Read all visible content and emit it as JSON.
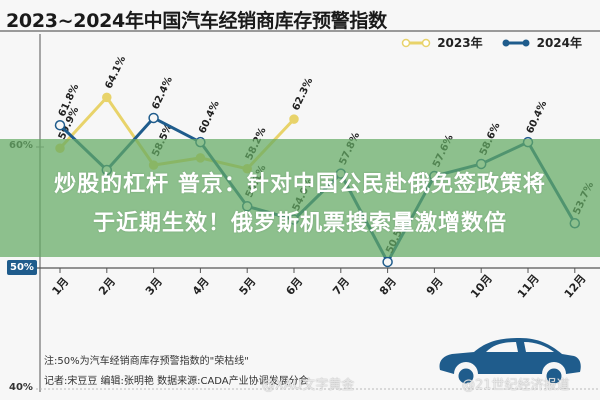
{
  "header": {
    "title": "2023~2024年中国汽车经销商库存预警指数"
  },
  "legend": [
    {
      "label": "2023年",
      "color": "#e8d36a"
    },
    {
      "label": "2024年",
      "color": "#1f5c8c"
    }
  ],
  "overlay": {
    "headline_line1": "炒股的杠杆 普京：针对中国公民赴俄免签政策将",
    "headline_line2": "于近期生效！俄罗斯机票搜索量激增数倍"
  },
  "footer": {
    "note": "注:50%为汽车经销商库存预警指数的\"荣枯线\"",
    "credits": "记者:宋豆豆   编辑:张明艳   数据来源:CADA产业协调发展分会",
    "watermark_left": "@XAU文字黄金",
    "watermark_right": "@21世纪经济报道"
  },
  "axis": {
    "y_ticks": [
      {
        "label": "60%",
        "value": 60
      },
      {
        "label": "50%",
        "value": 50
      },
      {
        "label": "40%",
        "value": 40
      }
    ]
  },
  "chart_data": {
    "type": "line",
    "title": "2023~2024年中国汽车经销商库存预警指数",
    "xlabel": "",
    "ylabel": "",
    "categories": [
      "1月",
      "2月",
      "3月",
      "4月",
      "5月",
      "6月",
      "7月",
      "8月",
      "9月",
      "10月",
      "11月",
      "12月"
    ],
    "ylim": [
      40,
      66
    ],
    "series": [
      {
        "name": "2023年",
        "color": "#e8d36a",
        "values": [
          59.9,
          64.1,
          58.5,
          59.1,
          58.2,
          62.3,
          null,
          null,
          null,
          null,
          null,
          null
        ],
        "labels": [
          "59.9%",
          "64.1%",
          "58.5%",
          "",
          "58.2%",
          "62.3%",
          "",
          "",
          "",
          "",
          "",
          ""
        ]
      },
      {
        "name": "2024年",
        "color": "#1f5c8c",
        "values": [
          61.8,
          58.1,
          62.4,
          60.4,
          55.1,
          54.0,
          57.8,
          50.5,
          57.6,
          58.6,
          60.4,
          53.7
        ],
        "labels": [
          "61.8%",
          "",
          "62.4%",
          "60.4%",
          "55.1%",
          "54.0%",
          "57.8%",
          "50.5%",
          "57.6%",
          "58.6%",
          "60.4%",
          "53.7%"
        ]
      }
    ],
    "reference_line": {
      "value": 50,
      "label": "荣枯线"
    },
    "legend_position": "top-right",
    "grid": false
  }
}
